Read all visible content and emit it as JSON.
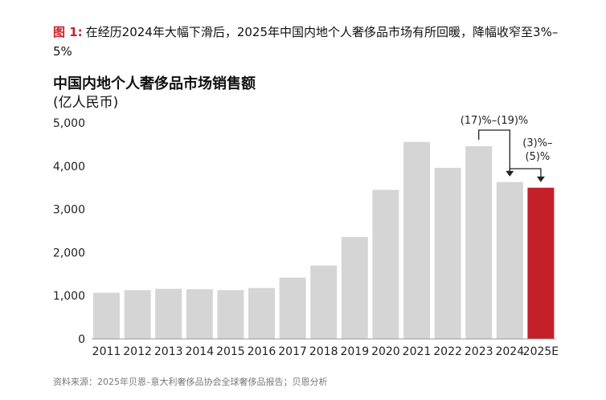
{
  "caption": {
    "label": "图 1:",
    "text": "在经历2024年大幅下滑后，2025年中国内地个人奢侈品市场有所回暖，降幅收窄至3%–5%"
  },
  "chart_title": "中国内地个人奢侈品市场销售额",
  "chart_unit": "(亿人民币)",
  "source": "资料来源：2025年贝恩–意大利奢侈品协会全球奢侈品报告；贝恩分析",
  "colors": {
    "bar": "#d5d5d5",
    "highlight": "#c3202a",
    "annotation": "#222222"
  },
  "chart_data": {
    "type": "bar",
    "categories": [
      "2011",
      "2012",
      "2013",
      "2014",
      "2015",
      "2016",
      "2017",
      "2018",
      "2019",
      "2020",
      "2021",
      "2022",
      "2023",
      "2024",
      "2025E"
    ],
    "values": [
      1070,
      1130,
      1160,
      1150,
      1130,
      1180,
      1420,
      1700,
      2360,
      3450,
      4560,
      3960,
      4460,
      3630,
      3500
    ],
    "highlight_index": 14,
    "ylim": [
      0,
      5000
    ],
    "yticks": [
      0,
      1000,
      2000,
      3000,
      4000,
      5000
    ],
    "ytick_labels": [
      "0",
      "1,000",
      "2,000",
      "3,000",
      "4,000",
      "5,000"
    ],
    "grid": false,
    "annotations": [
      {
        "text": "(17)%–(19)%",
        "from_index": 12,
        "to_index": 13
      },
      {
        "text": "(3)%–\n(5)%",
        "from_index": 13,
        "to_index": 14
      }
    ]
  }
}
